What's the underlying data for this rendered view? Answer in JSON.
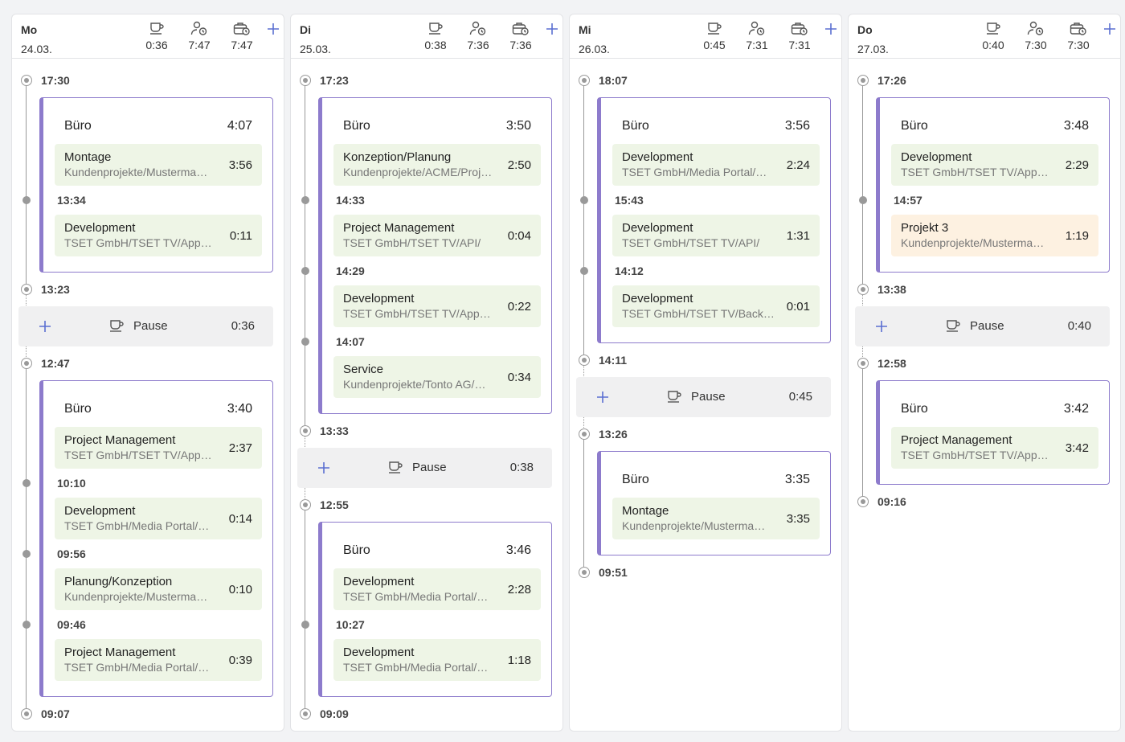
{
  "entry_color": "#eef5e6",
  "days": [
    {
      "weekday": "Mo",
      "date": "24.03.",
      "stats": [
        "0:36",
        "7:47",
        "7:47"
      ],
      "timeline": [
        {
          "time": "17:30"
        },
        {
          "location": "Büro",
          "duration": "4:07",
          "entries": [
            {
              "title": "Montage",
              "subtitle": "Kundenprojekte/Musterma…",
              "duration": "3:56"
            },
            {
              "time": "13:34"
            },
            {
              "title": "Development",
              "subtitle": "TSET GmbH/TSET TV/App…",
              "duration": "0:11"
            }
          ]
        },
        {
          "time": "13:23"
        },
        {
          "pause": "Pause",
          "duration": "0:36"
        },
        {
          "time": "12:47"
        },
        {
          "location": "Büro",
          "duration": "3:40",
          "entries": [
            {
              "title": "Project Management",
              "subtitle": "TSET GmbH/TSET TV/App…",
              "duration": "2:37"
            },
            {
              "time": "10:10"
            },
            {
              "title": "Development",
              "subtitle": "TSET GmbH/Media Portal/…",
              "duration": "0:14"
            },
            {
              "time": "09:56"
            },
            {
              "title": "Planung/Konzeption",
              "subtitle": "Kundenprojekte/Musterma…",
              "duration": "0:10"
            },
            {
              "time": "09:46"
            },
            {
              "title": "Project Management",
              "subtitle": "TSET GmbH/Media Portal/…",
              "duration": "0:39"
            }
          ]
        },
        {
          "time": "09:07"
        }
      ]
    },
    {
      "weekday": "Di",
      "date": "25.03.",
      "stats": [
        "0:38",
        "7:36",
        "7:36"
      ],
      "timeline": [
        {
          "time": "17:23"
        },
        {
          "location": "Büro",
          "duration": "3:50",
          "entries": [
            {
              "title": "Konzeption/Planung",
              "subtitle": "Kundenprojekte/ACME/Proj…",
              "duration": "2:50"
            },
            {
              "time": "14:33"
            },
            {
              "title": "Project Management",
              "subtitle": "TSET GmbH/TSET TV/API/",
              "duration": "0:04"
            },
            {
              "time": "14:29"
            },
            {
              "title": "Development",
              "subtitle": "TSET GmbH/TSET TV/App…",
              "duration": "0:22"
            },
            {
              "time": "14:07"
            },
            {
              "title": "Service",
              "subtitle": "Kundenprojekte/Tonto AG/…",
              "duration": "0:34"
            }
          ]
        },
        {
          "time": "13:33"
        },
        {
          "pause": "Pause",
          "duration": "0:38"
        },
        {
          "time": "12:55"
        },
        {
          "location": "Büro",
          "duration": "3:46",
          "entries": [
            {
              "title": "Development",
              "subtitle": "TSET GmbH/Media Portal/…",
              "duration": "2:28"
            },
            {
              "time": "10:27"
            },
            {
              "title": "Development",
              "subtitle": "TSET GmbH/Media Portal/…",
              "duration": "1:18"
            }
          ]
        },
        {
          "time": "09:09"
        }
      ]
    },
    {
      "weekday": "Mi",
      "date": "26.03.",
      "stats": [
        "0:45",
        "7:31",
        "7:31"
      ],
      "timeline": [
        {
          "time": "18:07"
        },
        {
          "location": "Büro",
          "duration": "3:56",
          "entries": [
            {
              "title": "Development",
              "subtitle": "TSET GmbH/Media Portal/…",
              "duration": "2:24"
            },
            {
              "time": "15:43"
            },
            {
              "title": "Development",
              "subtitle": "TSET GmbH/TSET TV/API/",
              "duration": "1:31"
            },
            {
              "time": "14:12"
            },
            {
              "title": "Development",
              "subtitle": "TSET GmbH/TSET TV/Back…",
              "duration": "0:01"
            }
          ]
        },
        {
          "time": "14:11"
        },
        {
          "pause": "Pause",
          "duration": "0:45"
        },
        {
          "time": "13:26"
        },
        {
          "location": "Büro",
          "duration": "3:35",
          "entries": [
            {
              "title": "Montage",
              "subtitle": "Kundenprojekte/Musterma…",
              "duration": "3:35"
            }
          ]
        },
        {
          "time": "09:51"
        }
      ]
    },
    {
      "weekday": "Do",
      "date": "27.03.",
      "stats": [
        "0:40",
        "7:30",
        "7:30"
      ],
      "timeline": [
        {
          "time": "17:26"
        },
        {
          "location": "Büro",
          "duration": "3:48",
          "entries": [
            {
              "title": "Development",
              "subtitle": "TSET GmbH/TSET TV/App…",
              "duration": "2:29"
            },
            {
              "time": "14:57"
            },
            {
              "title": "Projekt 3",
              "subtitle": "Kundenprojekte/Musterma…",
              "duration": "1:19",
              "color": "#fdf1e1"
            }
          ]
        },
        {
          "time": "13:38"
        },
        {
          "pause": "Pause",
          "duration": "0:40"
        },
        {
          "time": "12:58"
        },
        {
          "location": "Büro",
          "duration": "3:42",
          "entries": [
            {
              "title": "Project Management",
              "subtitle": "TSET GmbH/TSET TV/App…",
              "duration": "3:42"
            }
          ]
        },
        {
          "time": "09:16"
        }
      ]
    }
  ]
}
